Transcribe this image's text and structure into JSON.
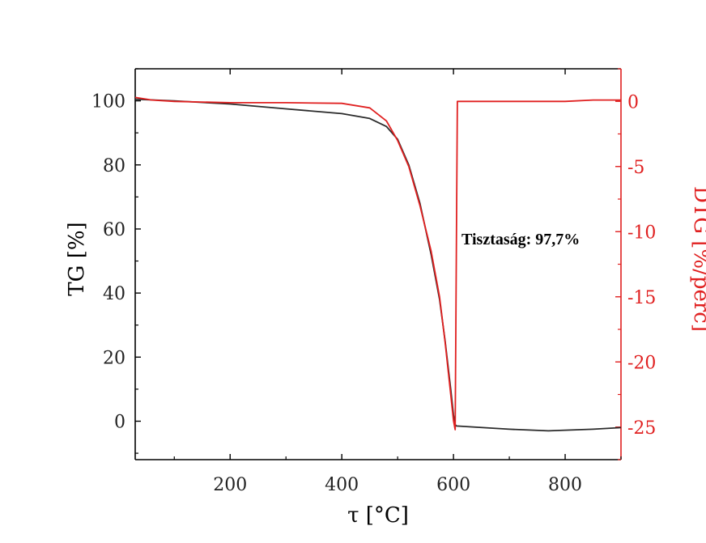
{
  "chart_data": {
    "type": "line",
    "xlabel": "τ [°C]",
    "ylabel_left": "TG [%]",
    "ylabel_right": "DTG [%/perc]",
    "annotation": "Tisztaság: 97,7%",
    "xlim": [
      30,
      900
    ],
    "ylim_left": [
      -12,
      110
    ],
    "ylim_right": [
      -27.5,
      2.5
    ],
    "x_ticks": [
      200,
      400,
      600,
      800
    ],
    "y_ticks_left": [
      0,
      20,
      40,
      60,
      80,
      100
    ],
    "y_ticks_right": [
      0,
      -5,
      -10,
      -15,
      -20,
      -25
    ],
    "grid": false,
    "colors": {
      "tg": "#2b2b2b",
      "dtg": "#e02020",
      "right_axis": "#e02020",
      "left_axis": "#000000"
    },
    "series": [
      {
        "axis": "left",
        "color": "#2b2b2b",
        "x": [
          30,
          100,
          200,
          300,
          400,
          450,
          480,
          500,
          520,
          540,
          560,
          575,
          585,
          595,
          600,
          603,
          605,
          700,
          770,
          850,
          900
        ],
        "y": [
          100.5,
          100,
          99,
          97.5,
          96,
          94.5,
          92,
          88,
          80,
          68,
          52,
          38,
          25,
          10,
          2,
          -1,
          -1.5,
          -2.5,
          -3,
          -2.5,
          -2
        ]
      },
      {
        "axis": "right",
        "color": "#e02020",
        "x": [
          30,
          60,
          100,
          200,
          300,
          400,
          450,
          480,
          500,
          520,
          540,
          560,
          575,
          585,
          595,
          600,
          603,
          605,
          607,
          700,
          800,
          850,
          900
        ],
        "y": [
          0.3,
          0.1,
          0,
          -0.1,
          -0.1,
          -0.15,
          -0.5,
          -1.5,
          -3,
          -5,
          -8,
          -11.5,
          -15,
          -18.5,
          -22.5,
          -24.5,
          -25.2,
          -12,
          0,
          0,
          0,
          0.1,
          0.1
        ]
      }
    ]
  }
}
